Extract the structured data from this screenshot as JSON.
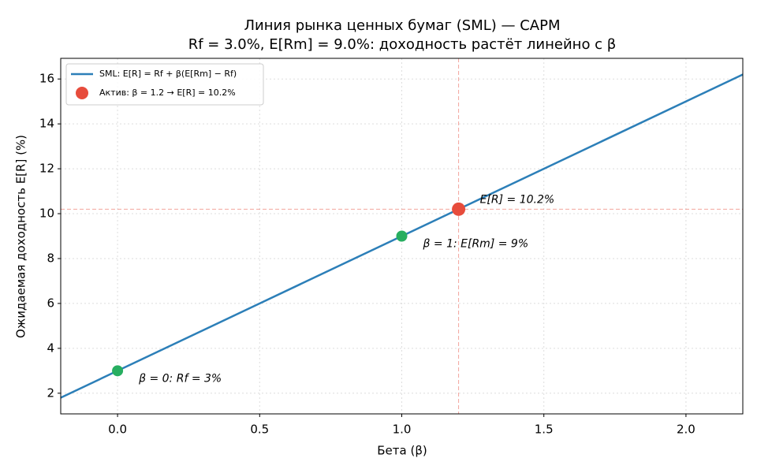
{
  "chart_data": {
    "type": "line",
    "title": "Линия рынка ценных бумаг (SML) — CAPM",
    "subtitle": "Rf = 3.0%, E[Rm] = 9.0%: доходность растёт линейно с β",
    "xlabel": "Бета (β)",
    "ylabel": "Ожидаемая доходность E[R] (%)",
    "xlim": [
      -0.2,
      2.2
    ],
    "ylim": [
      1.08,
      16.92
    ],
    "xticks": [
      {
        "value": 0,
        "label": "0.0"
      },
      0.5,
      {
        "value": 1,
        "label": "1.0"
      },
      1.5,
      {
        "value": 2,
        "label": "2.0"
      }
    ],
    "yticks": [
      2,
      4,
      6,
      8,
      10,
      12,
      14,
      16
    ],
    "grid": true,
    "legend": "upper left",
    "series": [
      {
        "name": "SML: E[R] = Rf + β(E[Rm] − Rf)",
        "color": "#2c7fb8",
        "x": [
          -0.2,
          2.2
        ],
        "values": [
          1.8,
          16.2
        ]
      },
      {
        "name": "Актив: β = 1.2 → E[R] = 10.2%",
        "color": "#e74c3c",
        "x": [
          1.2
        ],
        "values": [
          10.2
        ],
        "labels": [
          "E[R] = 10.2%"
        ]
      }
    ],
    "key_points": {
      "color": "#27ae60",
      "x": [
        0,
        1
      ],
      "values": [
        3,
        9
      ],
      "labels": [
        "β = 0: Rf = 3%",
        "β = 1: E[Rm] = 9%"
      ]
    }
  }
}
